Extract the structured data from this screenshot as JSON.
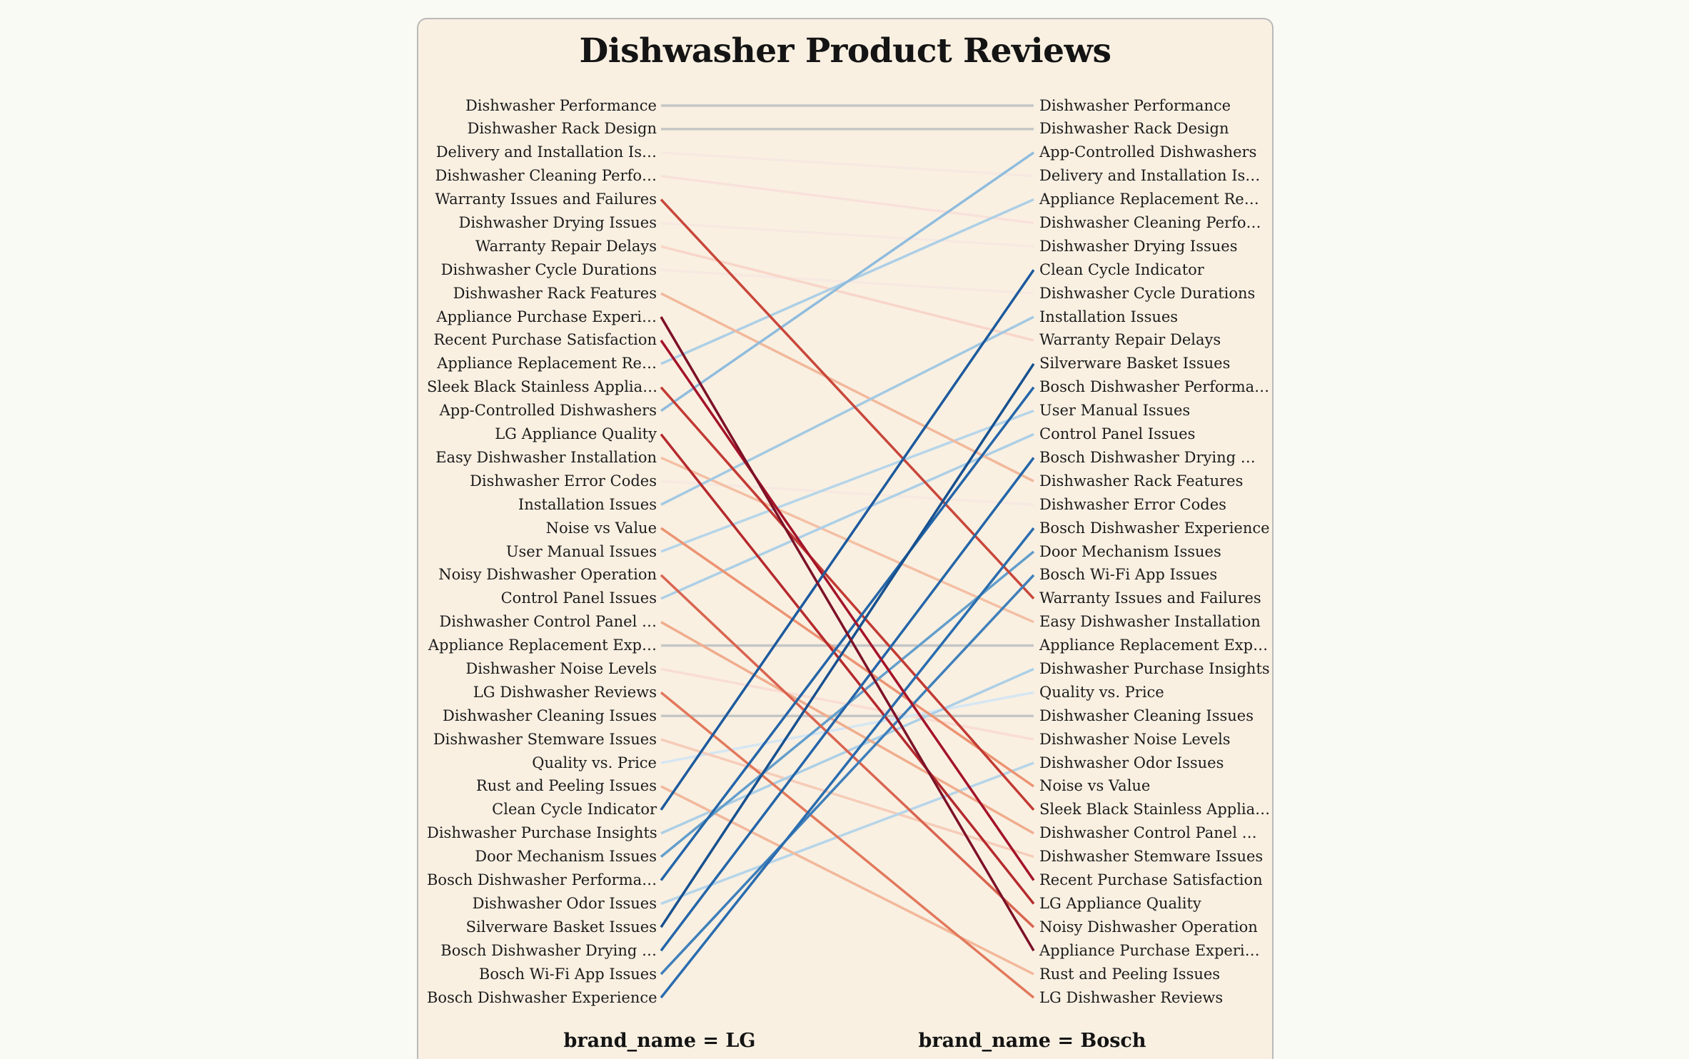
{
  "page": {
    "background": "#fafaf5"
  },
  "card": {
    "background": "#f9f0e2",
    "border_color": "#b9b9b9"
  },
  "chart_data": {
    "type": "slope",
    "title": "Dishwasher Product Reviews",
    "columns": [
      {
        "key": "lg",
        "label": "brand_name = LG"
      },
      {
        "key": "bosch",
        "label": "brand_name = Bosch"
      }
    ],
    "rank_axis": {
      "min": 1,
      "max": 39,
      "direction": "top_is_rank_1"
    },
    "flat_line_color": "#c6c6c6",
    "items": [
      {
        "topic": "Dishwasher Performance",
        "lg_rank": 1,
        "bosch_rank": 1,
        "delta": 0,
        "color": "#c6c6c6"
      },
      {
        "topic": "Dishwasher Rack Design",
        "lg_rank": 2,
        "bosch_rank": 2,
        "delta": 0,
        "color": "#c6c6c6"
      },
      {
        "topic": "Delivery and Installation Is…",
        "lg_rank": 3,
        "bosch_rank": 4,
        "delta": 1,
        "color": "#f7e9e1"
      },
      {
        "topic": "Dishwasher Cleaning Perfo…",
        "lg_rank": 4,
        "bosch_rank": 6,
        "delta": 2,
        "color": "#f9e1da"
      },
      {
        "topic": "Warranty Issues and Failures",
        "lg_rank": 5,
        "bosch_rank": 22,
        "delta": 17,
        "color": "#c8473a"
      },
      {
        "topic": "Dishwasher Drying Issues",
        "lg_rank": 6,
        "bosch_rank": 7,
        "delta": 1,
        "color": "#f7e9e1"
      },
      {
        "topic": "Warranty Repair Delays",
        "lg_rank": 7,
        "bosch_rank": 11,
        "delta": 4,
        "color": "#f8d6c8"
      },
      {
        "topic": "Dishwasher Cycle Durations",
        "lg_rank": 8,
        "bosch_rank": 9,
        "delta": 1,
        "color": "#f7e9e1"
      },
      {
        "topic": "Dishwasher Rack Features",
        "lg_rank": 9,
        "bosch_rank": 17,
        "delta": 8,
        "color": "#f2b89b"
      },
      {
        "topic": "Appliance Purchase Experi…",
        "lg_rank": 10,
        "bosch_rank": 37,
        "delta": 27,
        "color": "#7c1127"
      },
      {
        "topic": "Recent Purchase Satisfaction",
        "lg_rank": 11,
        "bosch_rank": 34,
        "delta": 23,
        "color": "#a41328"
      },
      {
        "topic": "Appliance Replacement Re…",
        "lg_rank": 12,
        "bosch_rank": 5,
        "delta": -7,
        "color": "#accfe6"
      },
      {
        "topic": "Sleek Black Stainless Applia…",
        "lg_rank": 13,
        "bosch_rank": 31,
        "delta": 18,
        "color": "#c23a33"
      },
      {
        "topic": "App-Controlled Dishwashers",
        "lg_rank": 14,
        "bosch_rank": 3,
        "delta": -11,
        "color": "#8fbcdd"
      },
      {
        "topic": "LG Appliance Quality",
        "lg_rank": 15,
        "bosch_rank": 35,
        "delta": 20,
        "color": "#b52a2d"
      },
      {
        "topic": "Easy Dishwasher Installation",
        "lg_rank": 16,
        "bosch_rank": 23,
        "delta": 7,
        "color": "#f4bfa3"
      },
      {
        "topic": "Dishwasher Error Codes",
        "lg_rank": 17,
        "bosch_rank": 18,
        "delta": 1,
        "color": "#f7e9e1"
      },
      {
        "topic": "Installation Issues",
        "lg_rank": 18,
        "bosch_rank": 10,
        "delta": -8,
        "color": "#a3c9e2"
      },
      {
        "topic": "Noise vs Value",
        "lg_rank": 19,
        "bosch_rank": 30,
        "delta": 11,
        "color": "#ec9372"
      },
      {
        "topic": "User Manual Issues",
        "lg_rank": 20,
        "bosch_rank": 14,
        "delta": -6,
        "color": "#b6d5e9"
      },
      {
        "topic": "Noisy Dishwasher Operation",
        "lg_rank": 21,
        "bosch_rank": 36,
        "delta": 15,
        "color": "#d96450"
      },
      {
        "topic": "Control Panel Issues",
        "lg_rank": 22,
        "bosch_rank": 15,
        "delta": -7,
        "color": "#accfe6"
      },
      {
        "topic": "Dishwasher Control Panel …",
        "lg_rank": 23,
        "bosch_rank": 32,
        "delta": 9,
        "color": "#f0ad8d"
      },
      {
        "topic": "Appliance Replacement Exp…",
        "lg_rank": 24,
        "bosch_rank": 24,
        "delta": 0,
        "color": "#c6c6c6"
      },
      {
        "topic": "Dishwasher Noise Levels",
        "lg_rank": 25,
        "bosch_rank": 28,
        "delta": 3,
        "color": "#f9ddd3"
      },
      {
        "topic": "LG Dishwasher Reviews",
        "lg_rank": 26,
        "bosch_rank": 39,
        "delta": 13,
        "color": "#e2795c"
      },
      {
        "topic": "Dishwasher Cleaning Issues",
        "lg_rank": 27,
        "bosch_rank": 27,
        "delta": 0,
        "color": "#c6c6c6"
      },
      {
        "topic": "Dishwasher Stemware Issues",
        "lg_rank": 28,
        "bosch_rank": 33,
        "delta": 5,
        "color": "#f6ccb8"
      },
      {
        "topic": "Quality vs. Price",
        "lg_rank": 29,
        "bosch_rank": 26,
        "delta": -3,
        "color": "#d6e6f2"
      },
      {
        "topic": "Rust and Peeling Issues",
        "lg_rank": 30,
        "bosch_rank": 38,
        "delta": 8,
        "color": "#f2b89b"
      },
      {
        "topic": "Clean Cycle Indicator",
        "lg_rank": 31,
        "bosch_rank": 8,
        "delta": -23,
        "color": "#1d5a9d"
      },
      {
        "topic": "Dishwasher Purchase Insights",
        "lg_rank": 32,
        "bosch_rank": 25,
        "delta": -7,
        "color": "#accfe6"
      },
      {
        "topic": "Door Mechanism Issues",
        "lg_rank": 33,
        "bosch_rank": 20,
        "delta": -13,
        "color": "#639ecb"
      },
      {
        "topic": "Bosch Dishwasher Performa…",
        "lg_rank": 34,
        "bosch_rank": 13,
        "delta": -21,
        "color": "#2465a8"
      },
      {
        "topic": "Dishwasher Odor Issues",
        "lg_rank": 35,
        "bosch_rank": 29,
        "delta": -6,
        "color": "#b6d5e9"
      },
      {
        "topic": "Silverware Basket Issues",
        "lg_rank": 36,
        "bosch_rank": 12,
        "delta": -24,
        "color": "#17508f"
      },
      {
        "topic": "Bosch Dishwasher Drying …",
        "lg_rank": 37,
        "bosch_rank": 16,
        "delta": -21,
        "color": "#2465a8"
      },
      {
        "topic": "Bosch Wi-Fi App Issues",
        "lg_rank": 38,
        "bosch_rank": 21,
        "delta": -17,
        "color": "#3f7fba"
      },
      {
        "topic": "Bosch Dishwasher Experience",
        "lg_rank": 39,
        "bosch_rank": 19,
        "delta": -20,
        "color": "#2a6cae"
      }
    ]
  }
}
